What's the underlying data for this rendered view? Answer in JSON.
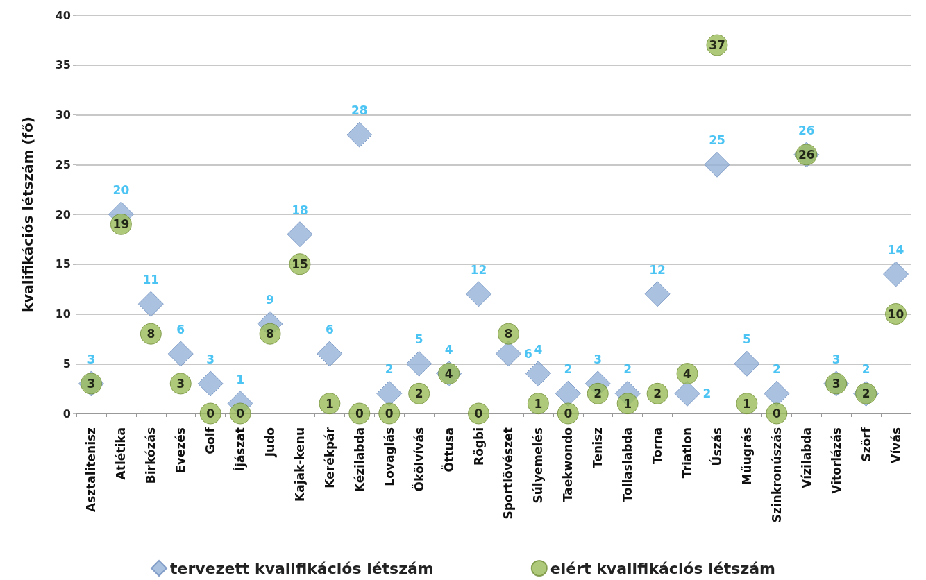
{
  "chart_data": {
    "type": "scatter",
    "ylabel": "kvalifikációs létszám (fő)",
    "categories": [
      "Asztalitenisz",
      "Atlétika",
      "Birkózás",
      "Evezés",
      "Golf",
      "Íjászat",
      "Judo",
      "Kajak-kenu",
      "Kerékpár",
      "Kézilabda",
      "Lovaglás",
      "Ökölvívás",
      "Öttusa",
      "Rögbi",
      "Sportlövészet",
      "Súlyemelés",
      "Taekwondo",
      "Tenisz",
      "Tollaslabda",
      "Torna",
      "Triatlon",
      "Úszás",
      "Műugrás",
      "Szinkronúszás",
      "Vízilabda",
      "Vitorlázás",
      "Szörf",
      "Vívás"
    ],
    "series": [
      {
        "name": "tervezett kvalifikációs létszám",
        "color": "#95b3d7",
        "marker": "diamond",
        "values": [
          3,
          20,
          11,
          6,
          3,
          1,
          9,
          18,
          6,
          28,
          2,
          5,
          4,
          12,
          6,
          4,
          2,
          3,
          2,
          12,
          2,
          25,
          5,
          2,
          26,
          3,
          2,
          14
        ]
      },
      {
        "name": "elért kvalifikációs létszám",
        "color": "#9bbb59",
        "marker": "circle",
        "values": [
          3,
          19,
          8,
          3,
          0,
          0,
          8,
          15,
          1,
          0,
          0,
          2,
          4,
          0,
          8,
          1,
          0,
          2,
          1,
          2,
          4,
          37,
          1,
          0,
          26,
          3,
          2,
          10
        ]
      }
    ],
    "ylim": [
      0,
      40
    ],
    "yticks": [
      0,
      5,
      10,
      15,
      20,
      25,
      30,
      35,
      40
    ],
    "grid": "y",
    "legend": "bottom",
    "data_labels": true
  }
}
